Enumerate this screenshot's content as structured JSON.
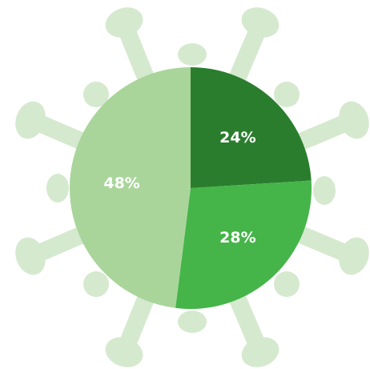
{
  "chart_data": {
    "type": "pie",
    "values": [
      24,
      28,
      48
    ],
    "value_labels": [
      "24%",
      "28%",
      "48%"
    ],
    "colors": [
      "#2b7d2e",
      "#45b549",
      "#a9d59b"
    ],
    "start_angle": 0,
    "direction": "clockwise"
  }
}
